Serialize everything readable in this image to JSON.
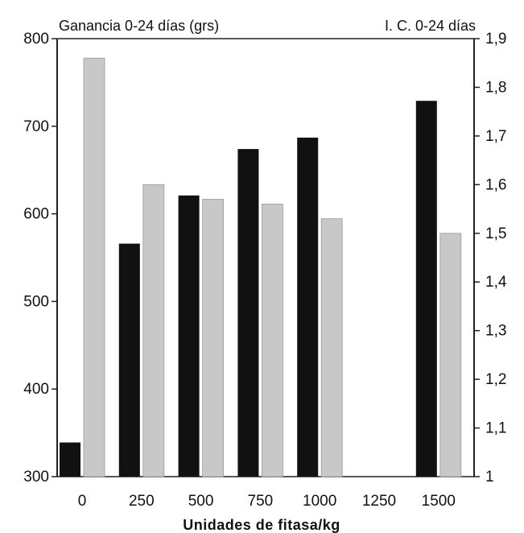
{
  "chart_data": {
    "type": "bar",
    "title_left": "Ganancia 0-24 días (grs)",
    "title_right": "I. C. 0-24 días",
    "xlabel": "Unidades de fitasa/kg",
    "categories": [
      "0",
      "250",
      "500",
      "750",
      "1000",
      "1250",
      "1500"
    ],
    "series": [
      {
        "axis": "left",
        "color": "#111111",
        "values": [
          339,
          566,
          621,
          674,
          687,
          null,
          729
        ]
      },
      {
        "axis": "right",
        "color": "#c8c8c8",
        "values": [
          1.86,
          1.6,
          1.57,
          1.56,
          1.53,
          null,
          1.5
        ]
      }
    ],
    "yleft": {
      "lim": [
        300,
        800
      ],
      "ticks": [
        300,
        400,
        500,
        600,
        700,
        800
      ],
      "tick_labels": [
        "300",
        "400",
        "500",
        "600",
        "700",
        "800"
      ]
    },
    "yright": {
      "lim": [
        1,
        1.9
      ],
      "ticks": [
        1,
        1.1,
        1.2,
        1.3,
        1.4,
        1.5,
        1.6,
        1.7,
        1.8,
        1.9
      ],
      "tick_labels": [
        "1",
        "1,1",
        "1,2",
        "1,3",
        "1,4",
        "1,5",
        "1,6",
        "1,7",
        "1,8",
        "1,9"
      ]
    },
    "grid": false,
    "legend": "none"
  }
}
